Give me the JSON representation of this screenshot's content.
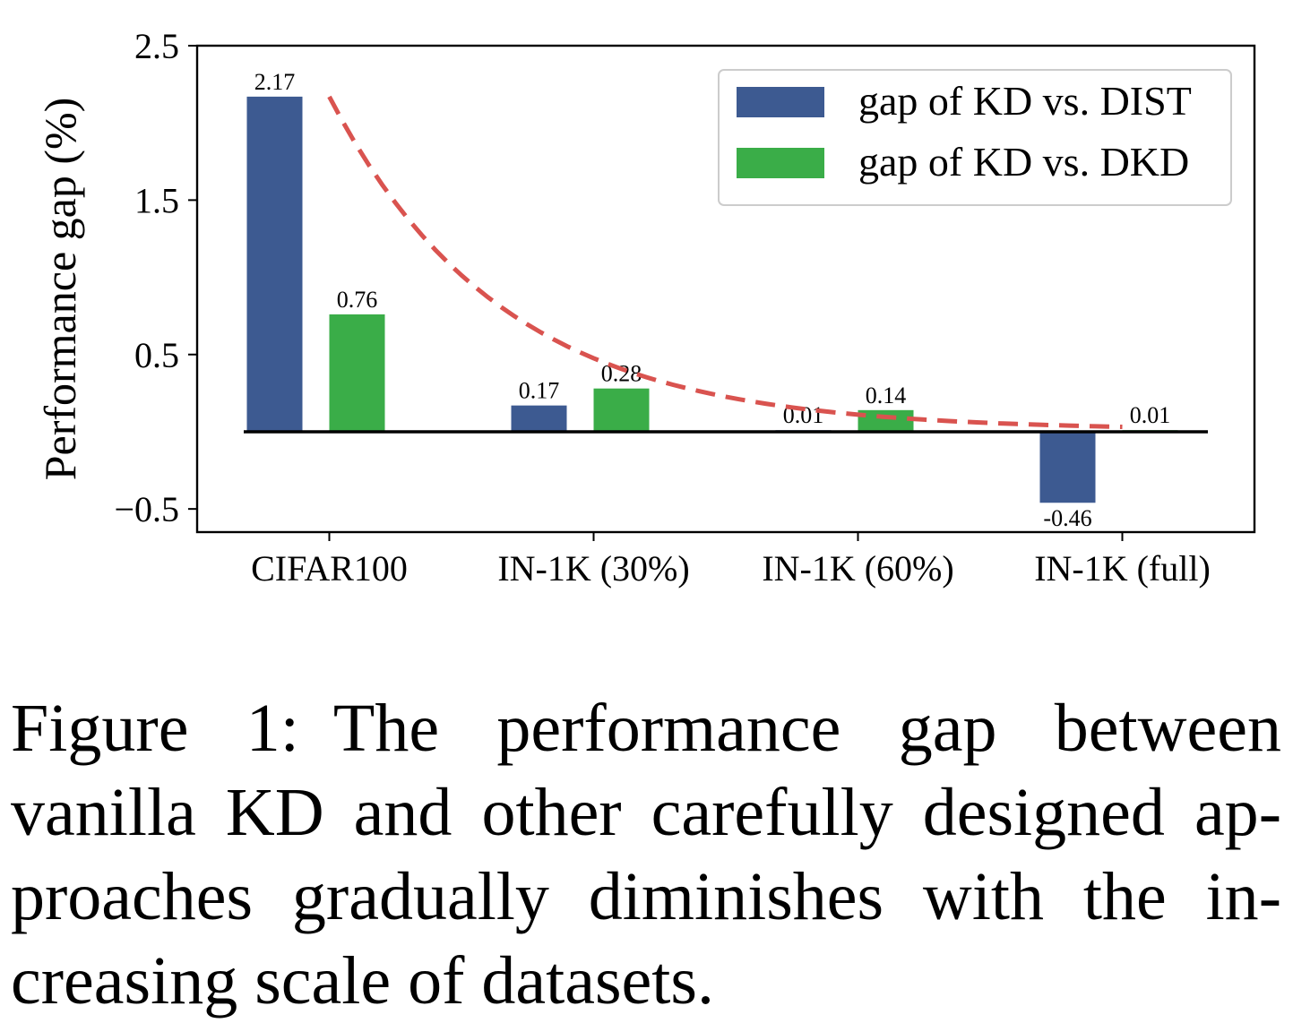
{
  "chart_data": {
    "type": "bar",
    "categories": [
      "CIFAR100",
      "IN-1K (30%)",
      "IN-1K (60%)",
      "IN-1K (full)"
    ],
    "series": [
      {
        "name": "gap of KD vs. DIST",
        "values": [
          2.17,
          0.17,
          0.01,
          -0.46
        ],
        "labels": [
          "2.17",
          "0.17",
          "0.01",
          "-0.46"
        ],
        "color": "#3d5a91"
      },
      {
        "name": "gap of KD vs. DKD",
        "values": [
          0.76,
          0.28,
          0.14,
          0.01
        ],
        "labels": [
          "0.76",
          "0.28",
          "0.14",
          "0.01"
        ],
        "color": "#3aad48"
      }
    ],
    "trend_line": {
      "style": "dashed",
      "color": "#d9534f",
      "shape": "exponential decay"
    },
    "ylabel": "Performance gap (%)",
    "xlabel": "",
    "ylim": [
      -0.65,
      2.5
    ],
    "yticks": [
      {
        "value": -0.5,
        "label": "−0.5"
      },
      {
        "value": 0.5,
        "label": "0.5"
      },
      {
        "value": 1.5,
        "label": "1.5"
      },
      {
        "value": 2.5,
        "label": "2.5"
      }
    ],
    "zero_line": true,
    "grid": false,
    "legend_position": "top-right"
  },
  "caption": {
    "label": "Figure 1:",
    "text": "The performance gap between vanilla KD and other carefully designed ap­proaches gradually diminishes with the in­creasing scale of datasets."
  }
}
